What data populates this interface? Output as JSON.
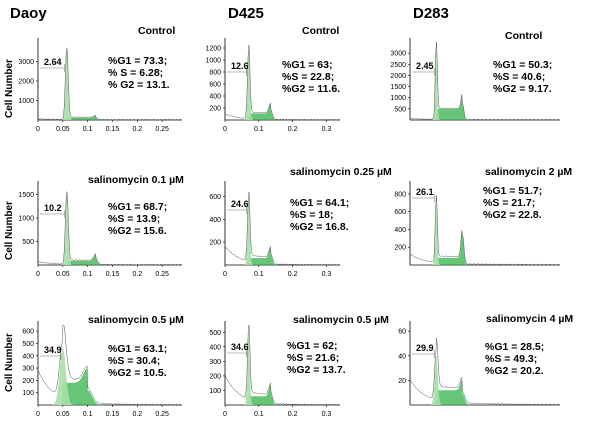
{
  "columns": [
    "Daoy",
    "D425",
    "D283"
  ],
  "y_axis_label": "Cell Number",
  "chart_data": [
    {
      "type": "area",
      "column": "Daoy",
      "title": "Control",
      "gate": "2.64",
      "stats": [
        "%G1 = 73.3;",
        "% S = 6.28;",
        "% G2 = 13.1."
      ],
      "xlim": [
        0,
        0.29
      ],
      "x_ticks": [
        "0",
        "0.05",
        "0.1",
        "0.15",
        "0.2",
        "0.25"
      ],
      "x_tick_values": [
        0,
        0.05,
        0.1,
        0.15,
        0.2,
        0.25
      ],
      "ylim": [
        0,
        4000
      ],
      "y_ticks": [
        "1000",
        "2000",
        "3000"
      ],
      "y_tick_values": [
        1000,
        2000,
        3000
      ],
      "g1_peak": 0.058,
      "g1_height": 3700,
      "s_height": 120,
      "g2_peak": 0.116,
      "g2_height": 90,
      "subg1_height": 40,
      "width_scale": 1.0
    },
    {
      "type": "area",
      "column": "D425",
      "title": "Control",
      "gate": "12.6",
      "stats": [
        "%G1 = 63;",
        "%S = 22.8;",
        "%G2 = 11.6."
      ],
      "xlim": [
        0,
        0.34
      ],
      "x_ticks": [
        "0",
        "0.1",
        "0.2",
        "0.3"
      ],
      "x_tick_values": [
        0,
        0.1,
        0.2,
        0.3
      ],
      "ylim": [
        0,
        1300
      ],
      "y_ticks": [
        "200",
        "400",
        "600",
        "800",
        "1000",
        "1200"
      ],
      "y_tick_values": [
        200,
        400,
        600,
        800,
        1000,
        1200
      ],
      "g1_peak": 0.07,
      "g1_height": 1180,
      "s_height": 110,
      "g2_peak": 0.135,
      "g2_height": 160,
      "subg1_height": 90,
      "width_scale": 1.1
    },
    {
      "type": "area",
      "column": "D283",
      "title": "Control",
      "gate": "2.45",
      "stats": [
        "%G1 = 50.3;",
        "%S = 40.6;",
        "%G2 = 9.17."
      ],
      "xlim": [
        0,
        0.2
      ],
      "x_ticks": [],
      "x_tick_values": [],
      "ylim": [
        0,
        3500
      ],
      "y_ticks": [
        "500",
        "1000",
        "1500",
        "2000",
        "2500",
        "3000"
      ],
      "y_tick_values": [
        500,
        1000,
        1500,
        2000,
        2500,
        3000
      ],
      "g1_peak": 0.035,
      "g1_height": 3300,
      "s_height": 500,
      "g2_peak": 0.07,
      "g2_height": 700,
      "subg1_height": 60,
      "width_scale": 0.7
    },
    {
      "type": "area",
      "column": "Daoy",
      "title": "salinomycin 0.1 µM",
      "gate": "10.2",
      "stats": [
        "%G1 = 68.7;",
        "%S = 13.9;",
        "%G2 = 15.6."
      ],
      "xlim": [
        0,
        0.29
      ],
      "x_ticks": [
        "0",
        "0.05",
        "0.1",
        "0.15",
        "0.2",
        "0.25"
      ],
      "x_tick_values": [
        0,
        0.05,
        0.1,
        0.15,
        0.2,
        0.25
      ],
      "ylim": [
        0,
        1700
      ],
      "y_ticks": [
        "500",
        "1000",
        "1500"
      ],
      "y_tick_values": [
        500,
        1000,
        1500
      ],
      "g1_peak": 0.058,
      "g1_height": 1550,
      "s_height": 90,
      "g2_peak": 0.116,
      "g2_height": 130,
      "subg1_height": 60,
      "width_scale": 1.0
    },
    {
      "type": "area",
      "column": "D425",
      "title": "salinomycin 0.25 µM",
      "gate": "24.6",
      "stats": [
        "%G1 = 64.1;",
        "%S = 18;",
        "%G2 = 16.8."
      ],
      "xlim": [
        0,
        0.34
      ],
      "x_ticks": [
        "0",
        "0.1",
        "0.2",
        "0.3"
      ],
      "x_tick_values": [
        0,
        0.1,
        0.2,
        0.3
      ],
      "ylim": [
        0,
        700
      ],
      "y_ticks": [
        "200",
        "400",
        "600"
      ],
      "y_tick_values": [
        200,
        400,
        600
      ],
      "g1_peak": 0.07,
      "g1_height": 580,
      "s_height": 60,
      "g2_peak": 0.135,
      "g2_height": 90,
      "subg1_height": 160,
      "width_scale": 1.1
    },
    {
      "type": "area",
      "column": "D283",
      "title": "salinomycin 2 µM",
      "gate": "26.1",
      "stats": [
        "%G1 = 51.7;",
        "%S = 21.7;",
        "%G2 = 22.8."
      ],
      "xlim": [
        0,
        0.2
      ],
      "x_ticks": [],
      "x_tick_values": [],
      "ylim": [
        0,
        900
      ],
      "y_ticks": [
        "200",
        "400",
        "600",
        "800"
      ],
      "y_tick_values": [
        200,
        400,
        600,
        800
      ],
      "g1_peak": 0.035,
      "g1_height": 720,
      "s_height": 80,
      "g2_peak": 0.07,
      "g2_height": 330,
      "subg1_height": 120,
      "width_scale": 0.7
    },
    {
      "type": "area",
      "column": "Daoy",
      "title": "salinomycin 0.5 µM",
      "gate": "34.9",
      "stats": [
        "%G1 = 63.1;",
        "%S = 30.4;",
        "%G2 = 10.5."
      ],
      "xlim": [
        0,
        0.29
      ],
      "x_ticks": [
        "0",
        "0.05",
        "0.1",
        "0.15",
        "0.2",
        "0.25"
      ],
      "x_tick_values": [
        0,
        0.05,
        0.1,
        0.15,
        0.2,
        0.25
      ],
      "ylim": [
        0,
        650
      ],
      "y_ticks": [
        "100",
        "200",
        "300",
        "400",
        "500",
        "600"
      ],
      "y_tick_values": [
        100,
        200,
        300,
        400,
        500,
        600
      ],
      "g1_peak": 0.05,
      "g1_height": 460,
      "s_height": 180,
      "g2_peak": 0.1,
      "g2_height": 120,
      "subg1_height": 280,
      "width_scale": 2.2
    },
    {
      "type": "area",
      "column": "D425",
      "title": "salinomycin 0.5 µM",
      "gate": "34.6",
      "stats": [
        "%G1 = 62;",
        "%S = 21.6;",
        "%G2 = 13.7."
      ],
      "xlim": [
        0,
        0.34
      ],
      "x_ticks": [
        "0",
        "0.1",
        "0.2",
        "0.3"
      ],
      "x_tick_values": [
        0,
        0.1,
        0.2,
        0.3
      ],
      "ylim": [
        0,
        550
      ],
      "y_ticks": [
        "100",
        "200",
        "300",
        "400",
        "500"
      ],
      "y_tick_values": [
        100,
        200,
        300,
        400,
        500
      ],
      "g1_peak": 0.07,
      "g1_height": 500,
      "s_height": 60,
      "g2_peak": 0.135,
      "g2_height": 80,
      "subg1_height": 200,
      "width_scale": 1.1
    },
    {
      "type": "area",
      "column": "D283",
      "title": "salinomycin 4 µM",
      "gate": "29.9",
      "stats": [
        "%G1 = 28.5;",
        "%S = 49.3;",
        "%G2 = 20.2."
      ],
      "xlim": [
        0,
        0.2
      ],
      "x_ticks": [],
      "x_tick_values": [],
      "ylim": [
        0,
        65
      ],
      "y_ticks": [
        "20",
        "40",
        "60"
      ],
      "y_tick_values": [
        20,
        40,
        60
      ],
      "g1_peak": 0.035,
      "g1_height": 40,
      "s_height": 12,
      "g2_peak": 0.07,
      "g2_height": 9,
      "subg1_height": 20,
      "width_scale": 1.1
    }
  ]
}
